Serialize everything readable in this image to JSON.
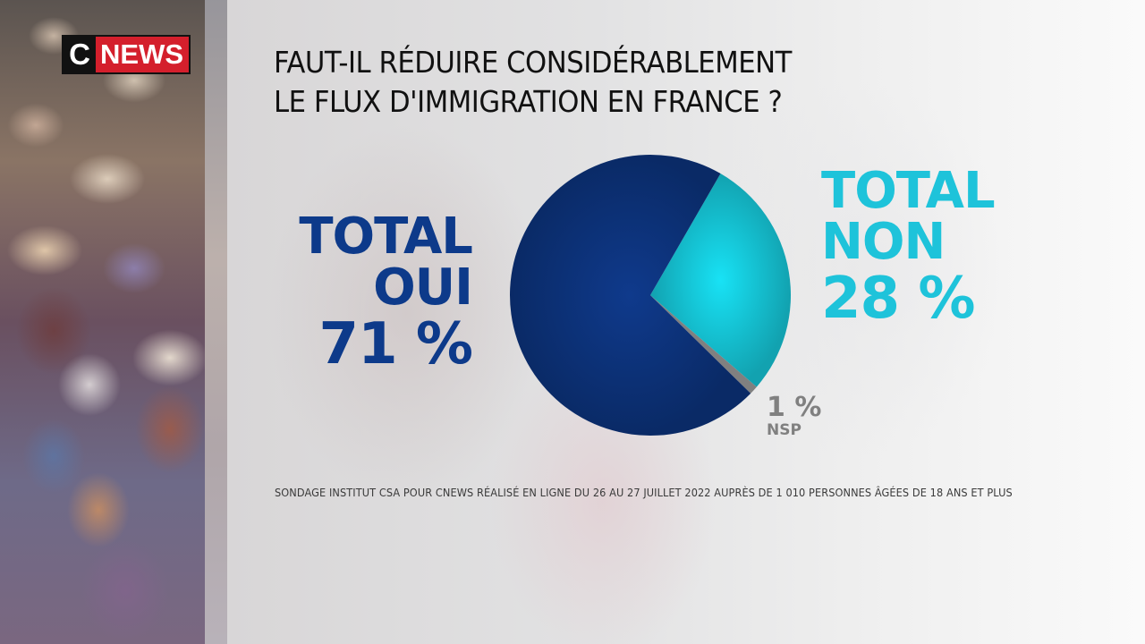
{
  "broadcaster": {
    "logo_c": "C",
    "logo_news": "NEWS",
    "brand_red": "#d41f2c"
  },
  "question": {
    "line1": "FAUT-IL RÉDUIRE CONSIDÉRABLEMENT",
    "line2": "LE FLUX D'IMMIGRATION EN FRANCE ?"
  },
  "labels": {
    "oui": {
      "line1": "TOTAL",
      "line2": "OUI",
      "pct": "71 %"
    },
    "non": {
      "line1": "TOTAL",
      "line2": "NON",
      "pct": "28 %"
    },
    "nsp": {
      "pct": "1 %",
      "text": "NSP"
    }
  },
  "source": "SONDAGE INSTITUT CSA POUR CNEWS RÉALISÉ EN LIGNE DU 26 AU 27 JUILLET 2022 AUPRÈS DE 1 010 PERSONNES ÂGÉES DE 18 ANS ET PLUS",
  "chart_data": {
    "type": "pie",
    "title": "FAUT-IL RÉDUIRE CONSIDÉRABLEMENT LE FLUX D'IMMIGRATION EN FRANCE ?",
    "categories": [
      "TOTAL OUI",
      "TOTAL NON",
      "NSP"
    ],
    "values": [
      71,
      28,
      1
    ],
    "unit": "%",
    "colors": [
      "#0d3a8a",
      "#1ec3da",
      "#808080"
    ],
    "start_angle_deg": 30,
    "slice_order_clockwise": [
      "TOTAL NON",
      "NSP",
      "TOTAL OUI"
    ],
    "legend": "direct labels",
    "source": "SONDAGE INSTITUT CSA POUR CNEWS RÉALISÉ EN LIGNE DU 26 AU 27 JUILLET 2022 AUPRÈS DE 1 010 PERSONNES ÂGÉES DE 18 ANS ET PLUS"
  }
}
